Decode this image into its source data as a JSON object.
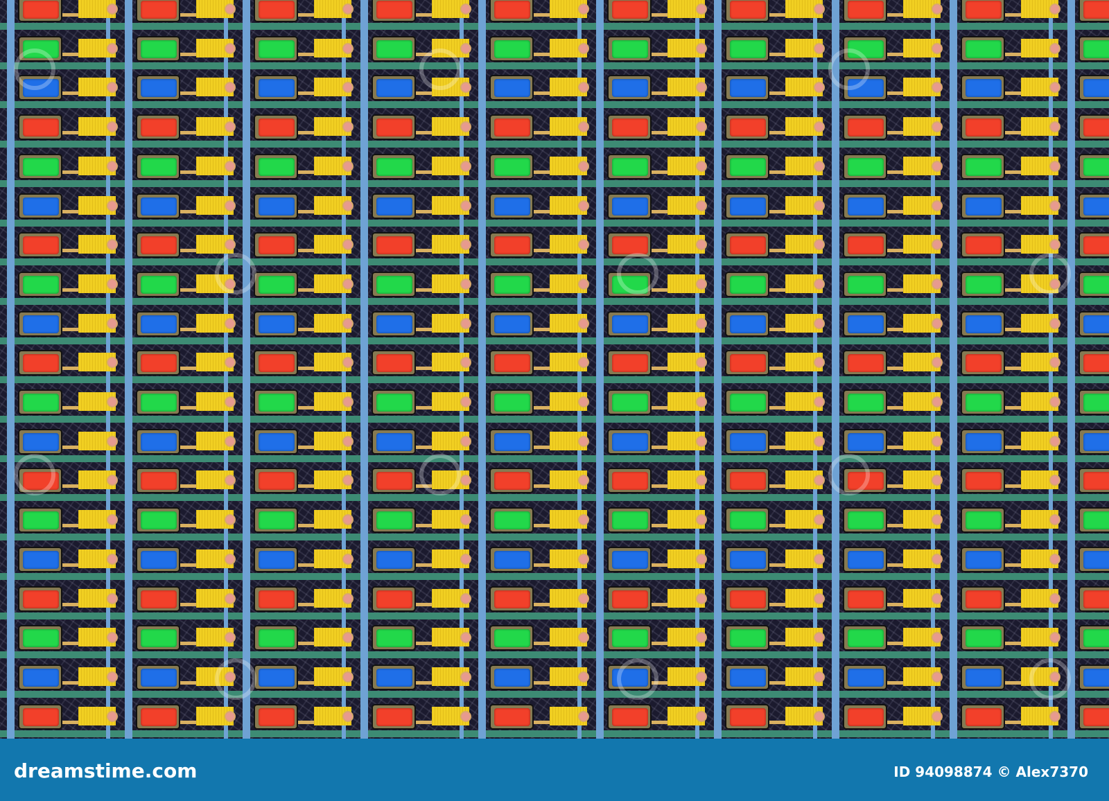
{
  "image": {
    "subject": "macro photo of display subpixel grid",
    "pixel_colors": {
      "red": "#f2402a",
      "green": "#22d84a",
      "blue": "#1f6fe8"
    },
    "row_color_order": [
      "red",
      "green",
      "blue"
    ],
    "pad_color": "#f1cf22",
    "bar_color": "#3d8b74",
    "footer_color": "#1277ae"
  },
  "footer": {
    "logo": "dreamstime.com",
    "credit": "ID 94098874 © Alex7370"
  }
}
